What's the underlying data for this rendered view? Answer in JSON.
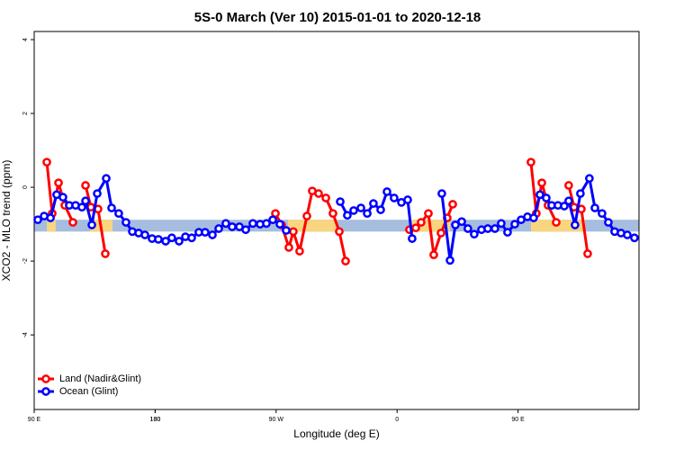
{
  "chart_data": {
    "type": "line",
    "title": "5S-0 March (Ver 10)   2015-01-01 to 2020-12-18",
    "x_label": "Longitude (deg E)",
    "y_label": "XCO2 - MLO trend (ppm)",
    "xlim": [
      90,
      540
    ],
    "ylim": [
      -6.02,
      4.22
    ],
    "xticks": [
      {
        "value": 90,
        "label": "90 E"
      },
      180,
      {
        "value": 270,
        "label": "90 W"
      },
      {
        "value": 360,
        "label": "0"
      },
      {
        "value": 450,
        "label": "90 E"
      },
      180.0001
    ],
    "yticks": [
      4,
      2,
      0,
      -2,
      -4
    ],
    "band": {
      "range": [
        -1.2,
        -0.88
      ],
      "color": "#a6bddf"
    },
    "highlights": {
      "color": "#f8d57e",
      "ranges": [
        [
          99.4,
          106
        ],
        [
          131.5,
          148.3
        ],
        [
          278.8,
          315.7
        ],
        [
          369.2,
          399.4
        ],
        [
          459.6,
          499.8
        ]
      ]
    },
    "legend": "bottom-left",
    "series": [
      {
        "name": "Land (Nadir&Glint)",
        "color": "#ff0000",
        "x": [
          99.4,
          103.4,
          108.1,
          112.8,
          118.8,
          null,
          128.2,
          132.2,
          137.5,
          142.9,
          null,
          269.5,
          274.1,
          279.5,
          282.8,
          287.5,
          292.9,
          296.9,
          301.6,
          307.0,
          312.3,
          317.0,
          321.7,
          null,
          369.2,
          373.9,
          377.9,
          383.3,
          387.3,
          392.7,
          397.3,
          401.4,
          null,
          459.6,
          463.6,
          467.7,
          472.3,
          478.4,
          null,
          487.7,
          491.7,
          497.1,
          501.8
        ],
        "values": [
          0.68,
          -0.71,
          0.12,
          -0.49,
          -0.95,
          null,
          0.05,
          -0.54,
          -0.59,
          -1.8,
          null,
          -0.71,
          -1.02,
          -1.63,
          -1.2,
          -1.73,
          -0.78,
          -0.1,
          -0.17,
          -0.29,
          -0.71,
          -1.2,
          -2.0,
          null,
          -1.15,
          -1.1,
          -0.95,
          -0.71,
          -1.83,
          -1.24,
          -0.83,
          -0.46,
          null,
          0.68,
          -0.71,
          0.12,
          -0.49,
          -0.95,
          null,
          0.05,
          -0.54,
          -0.59,
          -1.8
        ]
      },
      {
        "name": "Ocean (Glint)",
        "color": "#0000ff",
        "x": [
          92.7,
          97.4,
          102.1,
          106.7,
          111.4,
          116.1,
          120.8,
          125.5,
          128.2,
          132.9,
          136.9,
          143.6,
          147.6,
          152.9,
          158.3,
          163.0,
          167.7,
          172.4,
          177.7,
          182.4,
          187.8,
          192.4,
          197.8,
          202.5,
          207.2,
          212.5,
          217.2,
          222.6,
          227.3,
          232.6,
          237.3,
          242.7,
          247.4,
          252.7,
          258.1,
          262.8,
          267.5,
          272.8,
          277.5,
          null,
          317.7,
          323.0,
          327.7,
          333.1,
          337.8,
          342.4,
          347.8,
          352.5,
          357.8,
          363.2,
          367.9,
          371.2,
          null,
          393.3,
          399.4,
          403.4,
          408.1,
          412.7,
          417.4,
          422.8,
          427.5,
          432.8,
          437.5,
          442.2,
          447.6,
          452.3,
          457.0,
          461.6,
          466.3,
          471.0,
          475.0,
          479.7,
          484.4,
          487.7,
          492.4,
          496.4,
          503.1,
          507.2,
          512.5,
          517.2,
          521.9,
          526.6,
          531.3,
          536.6
        ],
        "values": [
          -0.88,
          -0.78,
          -0.83,
          -0.2,
          -0.27,
          -0.49,
          -0.49,
          -0.54,
          -0.37,
          -1.02,
          -0.17,
          0.24,
          -0.56,
          -0.71,
          -0.95,
          -1.2,
          -1.24,
          -1.29,
          -1.39,
          -1.41,
          -1.46,
          -1.37,
          -1.46,
          -1.34,
          -1.37,
          -1.22,
          -1.22,
          -1.29,
          -1.12,
          -0.98,
          -1.07,
          -1.07,
          -1.15,
          -0.98,
          -1.0,
          -0.98,
          -0.88,
          -1.0,
          -1.17,
          null,
          -0.39,
          -0.76,
          -0.63,
          -0.56,
          -0.71,
          -0.44,
          -0.61,
          -0.12,
          -0.29,
          -0.41,
          -0.34,
          -1.39,
          null,
          -0.17,
          -1.98,
          -1.02,
          -0.93,
          -1.12,
          -1.27,
          -1.15,
          -1.12,
          -1.12,
          -0.98,
          -1.22,
          -1.0,
          -0.88,
          -0.8,
          -0.83,
          -0.2,
          -0.29,
          -0.49,
          -0.49,
          -0.51,
          -0.37,
          -1.02,
          -0.17,
          0.24,
          -0.56,
          -0.71,
          -0.95,
          -1.2,
          -1.24,
          -1.29,
          -1.37
        ]
      }
    ]
  }
}
